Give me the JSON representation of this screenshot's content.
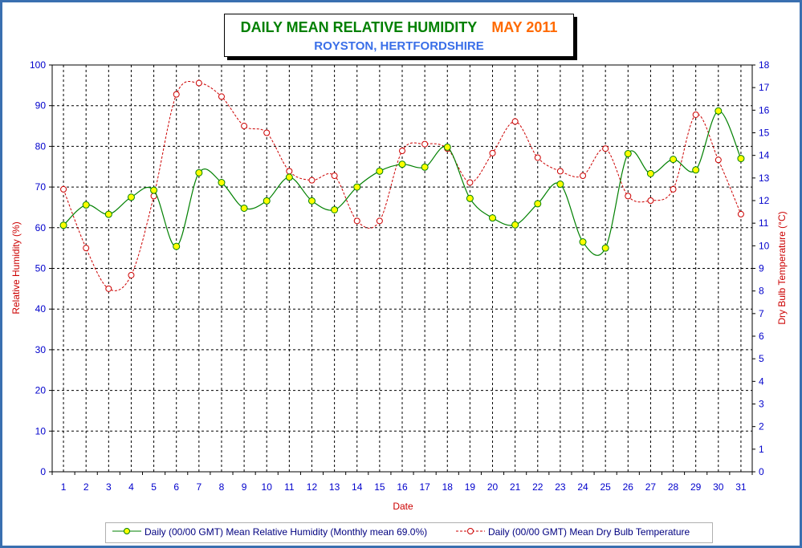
{
  "colors": {
    "humidity_line": "#008000",
    "humidity_marker": "#ffff00",
    "temperature_line": "#cc0000",
    "axis_text": "#0000cc",
    "axis_title": "#cc0000",
    "frame_border": "#3a6fb0"
  },
  "title": {
    "main": "DAILY MEAN RELATIVE HUMIDITY",
    "month": "MAY 2011",
    "subtitle": "ROYSTON, HERTFORDSHIRE"
  },
  "legend": {
    "humidity": "Daily (00/00 GMT) Mean Relative Humidity (Monthly mean 69.0%)",
    "temperature": "Daily (00/00 GMT) Mean Dry Bulb Temperature"
  },
  "chart_data": {
    "type": "line",
    "xlabel": "Date",
    "ylabel": "Relative Humidity (%)",
    "y2label": "Dry Bulb Temperature (°C)",
    "x": [
      1,
      2,
      3,
      4,
      5,
      6,
      7,
      8,
      9,
      10,
      11,
      12,
      13,
      14,
      15,
      16,
      17,
      18,
      19,
      20,
      21,
      22,
      23,
      24,
      25,
      26,
      27,
      28,
      29,
      30,
      31
    ],
    "ylim": [
      0,
      100
    ],
    "y_ticks": [
      0,
      10,
      20,
      30,
      40,
      50,
      60,
      70,
      80,
      90,
      100
    ],
    "y2lim": [
      0,
      18
    ],
    "y2_ticks": [
      0,
      1,
      2,
      3,
      4,
      5,
      6,
      7,
      8,
      9,
      10,
      11,
      12,
      13,
      14,
      15,
      16,
      17,
      18
    ],
    "grid": true,
    "legend_position": "bottom",
    "series": [
      {
        "name": "Daily (00/00 GMT) Mean Relative Humidity (Monthly mean 69.0%)",
        "axis": "left",
        "style": "solid",
        "values": [
          60.6,
          65.6,
          63.3,
          67.5,
          69.2,
          55.4,
          73.5,
          71.1,
          64.8,
          66.6,
          72.4,
          66.6,
          64.4,
          70.0,
          73.9,
          75.6,
          74.9,
          79.8,
          67.2,
          62.4,
          60.7,
          65.9,
          70.7,
          56.5,
          55.0,
          78.2,
          73.3,
          76.8,
          74.2,
          88.7,
          77.0
        ]
      },
      {
        "name": "Daily (00/00 GMT) Mean Dry Bulb Temperature",
        "axis": "right",
        "style": "dashed",
        "values": [
          12.5,
          9.9,
          8.1,
          8.7,
          12.2,
          16.7,
          17.2,
          16.6,
          15.3,
          15.0,
          13.3,
          12.9,
          13.1,
          11.1,
          11.1,
          14.2,
          14.5,
          14.3,
          12.8,
          14.1,
          15.5,
          13.9,
          13.3,
          13.1,
          14.3,
          12.2,
          12.0,
          12.5,
          15.8,
          13.8,
          11.4
        ]
      }
    ]
  }
}
